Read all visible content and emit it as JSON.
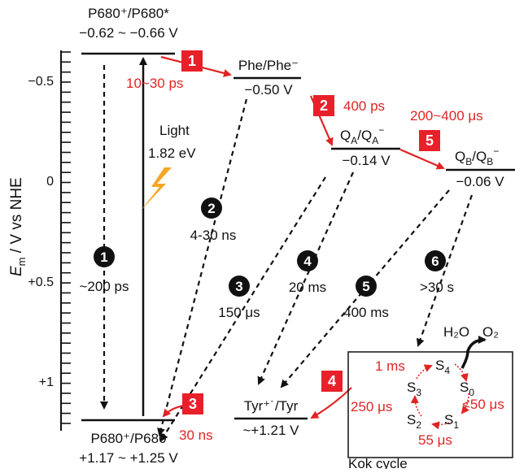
{
  "colors": {
    "red": "#e02424",
    "black": "#111111",
    "badge_red": "#e8202a",
    "flash_orange": "#f5a623"
  },
  "axis": {
    "label_main": "E",
    "label_sub": "m",
    "label_rest": " / V vs NHE",
    "ticks": [
      "−0.5",
      "0",
      "+0.5",
      "+1"
    ],
    "range": [
      -0.66,
      1.25
    ]
  },
  "levels": {
    "p680_ox_excited": {
      "title": "P680⁺/P680*",
      "value": "−0.62 ~ −0.66 V"
    },
    "phe": {
      "title": "Phe/Phe⁻",
      "value": "−0.50 V"
    },
    "qa": {
      "title_main": "Q",
      "title_sub1": "A",
      "title_mid": "/Q",
      "title_sub2": "A",
      "title_sup": "−",
      "value": "−0.14 V"
    },
    "qb": {
      "title_main": "Q",
      "title_sub1": "B",
      "title_mid": "/Q",
      "title_sub2": "B",
      "title_sup": "−",
      "value": "−0.06 V"
    },
    "tyr": {
      "title": "Tyr⁺˙/Tyr",
      "value": "~+1.21 V"
    },
    "p680_ox": {
      "title": "P680⁺/P680",
      "value": "+1.17 ~ +1.25 V"
    }
  },
  "light": {
    "label": "Light",
    "energy": "1.82 eV"
  },
  "forward_steps": [
    {
      "num": "1",
      "time": "10~30 ps"
    },
    {
      "num": "2",
      "time": "400 ps"
    },
    {
      "num": "3",
      "time": "30 ns"
    },
    {
      "num": "4",
      "time": ""
    },
    {
      "num": "5",
      "time": "200~400 μs"
    }
  ],
  "back_steps": [
    {
      "num": "1",
      "time": "~200 ps"
    },
    {
      "num": "2",
      "time": "4-30 ns"
    },
    {
      "num": "3",
      "time": "150 μs"
    },
    {
      "num": "4",
      "time": "20 ms"
    },
    {
      "num": "5",
      "time": "400 ms"
    },
    {
      "num": "6",
      "time": ">30 s"
    }
  ],
  "kok": {
    "title": "Kok cycle",
    "water": "H₂O",
    "oxygen": "O₂",
    "states": [
      "S",
      "S",
      "S",
      "S",
      "S"
    ],
    "state_subs": [
      "4",
      "0",
      "1",
      "2",
      "3"
    ],
    "times": [
      "1 ms",
      "<50 μs",
      "55 μs",
      "250 μs"
    ]
  }
}
